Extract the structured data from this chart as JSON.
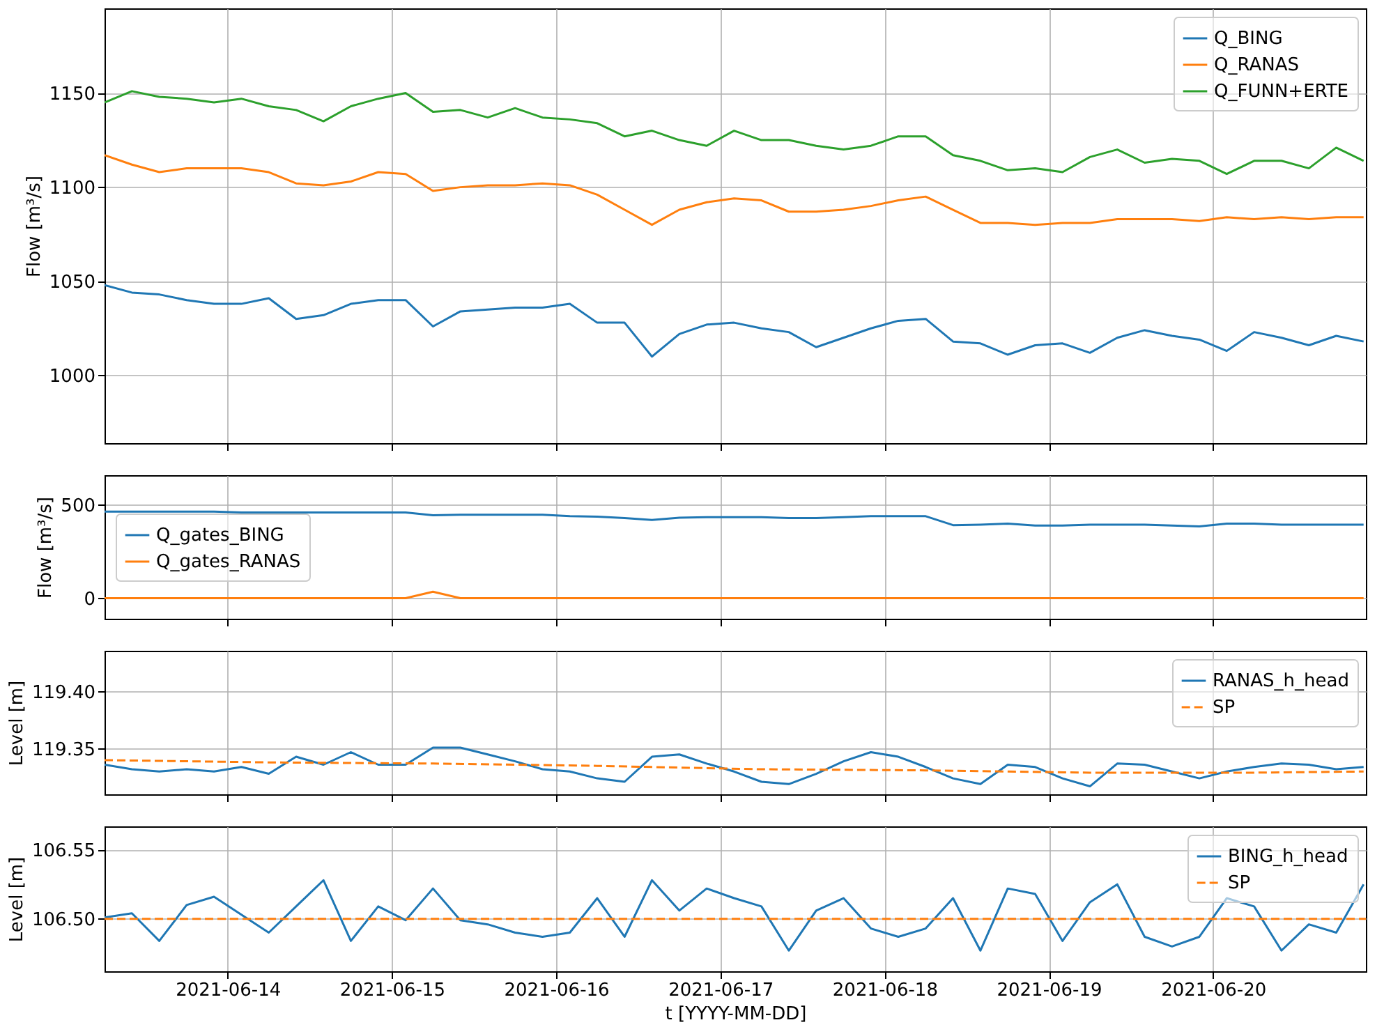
{
  "chart_data": [
    {
      "type": "line",
      "ylabel": "Flow [m³/s]",
      "legend": "top right",
      "grid": true,
      "tick_labels": "y",
      "x": [
        "2021-06-13T06:00",
        "2021-06-13T10:00",
        "2021-06-13T14:00",
        "2021-06-13T18:00",
        "2021-06-13T22:00",
        "2021-06-14T02:00",
        "2021-06-14T06:00",
        "2021-06-14T10:00",
        "2021-06-14T14:00",
        "2021-06-14T18:00",
        "2021-06-14T22:00",
        "2021-06-15T02:00",
        "2021-06-15T06:00",
        "2021-06-15T10:00",
        "2021-06-15T14:00",
        "2021-06-15T18:00",
        "2021-06-15T22:00",
        "2021-06-16T02:00",
        "2021-06-16T06:00",
        "2021-06-16T10:00",
        "2021-06-16T14:00",
        "2021-06-16T18:00",
        "2021-06-16T22:00",
        "2021-06-17T02:00",
        "2021-06-17T06:00",
        "2021-06-17T10:00",
        "2021-06-17T14:00",
        "2021-06-17T18:00",
        "2021-06-17T22:00",
        "2021-06-18T02:00",
        "2021-06-18T06:00",
        "2021-06-18T10:00",
        "2021-06-18T14:00",
        "2021-06-18T18:00",
        "2021-06-18T22:00",
        "2021-06-19T02:00",
        "2021-06-19T06:00",
        "2021-06-19T10:00",
        "2021-06-19T14:00",
        "2021-06-19T18:00",
        "2021-06-19T22:00",
        "2021-06-20T02:00",
        "2021-06-20T06:00",
        "2021-06-20T10:00",
        "2021-06-20T14:00",
        "2021-06-20T18:00",
        "2021-06-20T22:00"
      ],
      "xlim": [
        "2021-06-13T06:00",
        "2021-06-20T22:20"
      ],
      "xticks": [
        "2021-06-14",
        "2021-06-15",
        "2021-06-16",
        "2021-06-17",
        "2021-06-18",
        "2021-06-19",
        "2021-06-20"
      ],
      "ylim": [
        964,
        1195
      ],
      "yticks": [
        1000,
        1050,
        1100,
        1150
      ],
      "series": [
        {
          "name": "Q_BING",
          "color": "#1f77b4",
          "values": [
            1048,
            1044,
            1043,
            1040,
            1038,
            1038,
            1041,
            1030,
            1032,
            1038,
            1040,
            1040,
            1026,
            1034,
            1035,
            1036,
            1036,
            1038,
            1028,
            1028,
            1010,
            1022,
            1027,
            1028,
            1025,
            1023,
            1015,
            1020,
            1025,
            1029,
            1030,
            1018,
            1017,
            1011,
            1016,
            1017,
            1012,
            1020,
            1024,
            1021,
            1019,
            1013,
            1023,
            1020,
            1016,
            1021,
            1018
          ]
        },
        {
          "name": "Q_RANAS",
          "color": "#ff7f0e",
          "values": [
            1117,
            1112,
            1108,
            1110,
            1110,
            1110,
            1108,
            1102,
            1101,
            1103,
            1108,
            1107,
            1098,
            1100,
            1101,
            1101,
            1102,
            1101,
            1096,
            1088,
            1080,
            1088,
            1092,
            1094,
            1093,
            1087,
            1087,
            1088,
            1090,
            1093,
            1095,
            1088,
            1081,
            1081,
            1080,
            1081,
            1081,
            1083,
            1083,
            1083,
            1082,
            1084,
            1083,
            1084,
            1083,
            1084,
            1084
          ]
        },
        {
          "name": "Q_FUNN+ERTE",
          "color": "#2ca02c",
          "values": [
            1145,
            1151,
            1148,
            1147,
            1145,
            1147,
            1143,
            1141,
            1135,
            1143,
            1147,
            1150,
            1140,
            1141,
            1137,
            1142,
            1137,
            1136,
            1134,
            1127,
            1130,
            1125,
            1122,
            1130,
            1125,
            1125,
            1122,
            1120,
            1122,
            1127,
            1127,
            1117,
            1114,
            1109,
            1110,
            1108,
            1116,
            1120,
            1113,
            1115,
            1114,
            1107,
            1114,
            1114,
            1110,
            1121,
            1114
          ]
        }
      ]
    },
    {
      "type": "line",
      "ylabel": "Flow [m³/s]",
      "legend": "left",
      "grid": true,
      "tick_labels": "y",
      "x": [
        "2021-06-13T06:00",
        "2021-06-13T10:00",
        "2021-06-13T14:00",
        "2021-06-13T18:00",
        "2021-06-13T22:00",
        "2021-06-14T02:00",
        "2021-06-14T06:00",
        "2021-06-14T10:00",
        "2021-06-14T14:00",
        "2021-06-14T18:00",
        "2021-06-14T22:00",
        "2021-06-15T02:00",
        "2021-06-15T06:00",
        "2021-06-15T10:00",
        "2021-06-15T14:00",
        "2021-06-15T18:00",
        "2021-06-15T22:00",
        "2021-06-16T02:00",
        "2021-06-16T06:00",
        "2021-06-16T10:00",
        "2021-06-16T14:00",
        "2021-06-16T18:00",
        "2021-06-16T22:00",
        "2021-06-17T02:00",
        "2021-06-17T06:00",
        "2021-06-17T10:00",
        "2021-06-17T14:00",
        "2021-06-17T18:00",
        "2021-06-17T22:00",
        "2021-06-18T02:00",
        "2021-06-18T06:00",
        "2021-06-18T10:00",
        "2021-06-18T14:00",
        "2021-06-18T18:00",
        "2021-06-18T22:00",
        "2021-06-19T02:00",
        "2021-06-19T06:00",
        "2021-06-19T10:00",
        "2021-06-19T14:00",
        "2021-06-19T18:00",
        "2021-06-19T22:00",
        "2021-06-20T02:00",
        "2021-06-20T06:00",
        "2021-06-20T10:00",
        "2021-06-20T14:00",
        "2021-06-20T18:00",
        "2021-06-20T22:00"
      ],
      "xlim": [
        "2021-06-13T06:00",
        "2021-06-20T22:20"
      ],
      "xticks": [
        "2021-06-14",
        "2021-06-15",
        "2021-06-16",
        "2021-06-17",
        "2021-06-18",
        "2021-06-19",
        "2021-06-20"
      ],
      "ylim": [
        -110,
        660
      ],
      "yticks": [
        0,
        500
      ],
      "series": [
        {
          "name": "Q_gates_BING",
          "color": "#1f77b4",
          "values": [
            465,
            465,
            465,
            465,
            465,
            460,
            460,
            460,
            460,
            460,
            460,
            460,
            445,
            448,
            448,
            448,
            448,
            440,
            438,
            430,
            420,
            432,
            435,
            435,
            435,
            430,
            430,
            435,
            440,
            440,
            440,
            392,
            395,
            400,
            390,
            390,
            395,
            395,
            395,
            390,
            385,
            400,
            400,
            395,
            395,
            395,
            395
          ]
        },
        {
          "name": "Q_gates_RANAS",
          "color": "#ff7f0e",
          "values": [
            0,
            0,
            0,
            0,
            0,
            0,
            0,
            0,
            0,
            0,
            0,
            0,
            35,
            0,
            0,
            0,
            0,
            0,
            0,
            0,
            0,
            0,
            0,
            0,
            0,
            0,
            0,
            0,
            0,
            0,
            0,
            0,
            0,
            0,
            0,
            0,
            0,
            0,
            0,
            0,
            0,
            0,
            0,
            0,
            0,
            0,
            0
          ]
        }
      ]
    },
    {
      "type": "line",
      "ylabel": "Level [m]",
      "legend": "top right",
      "grid": true,
      "tick_labels": "y",
      "x": [
        "2021-06-13T06:00",
        "2021-06-13T10:00",
        "2021-06-13T14:00",
        "2021-06-13T18:00",
        "2021-06-13T22:00",
        "2021-06-14T02:00",
        "2021-06-14T06:00",
        "2021-06-14T10:00",
        "2021-06-14T14:00",
        "2021-06-14T18:00",
        "2021-06-14T22:00",
        "2021-06-15T02:00",
        "2021-06-15T06:00",
        "2021-06-15T10:00",
        "2021-06-15T14:00",
        "2021-06-15T18:00",
        "2021-06-15T22:00",
        "2021-06-16T02:00",
        "2021-06-16T06:00",
        "2021-06-16T10:00",
        "2021-06-16T14:00",
        "2021-06-16T18:00",
        "2021-06-16T22:00",
        "2021-06-17T02:00",
        "2021-06-17T06:00",
        "2021-06-17T10:00",
        "2021-06-17T14:00",
        "2021-06-17T18:00",
        "2021-06-17T22:00",
        "2021-06-18T02:00",
        "2021-06-18T06:00",
        "2021-06-18T10:00",
        "2021-06-18T14:00",
        "2021-06-18T18:00",
        "2021-06-18T22:00",
        "2021-06-19T02:00",
        "2021-06-19T06:00",
        "2021-06-19T10:00",
        "2021-06-19T14:00",
        "2021-06-19T18:00",
        "2021-06-19T22:00",
        "2021-06-20T02:00",
        "2021-06-20T06:00",
        "2021-06-20T10:00",
        "2021-06-20T14:00",
        "2021-06-20T18:00",
        "2021-06-20T22:00"
      ],
      "xlim": [
        "2021-06-13T06:00",
        "2021-06-20T22:20"
      ],
      "xticks": [
        "2021-06-14",
        "2021-06-15",
        "2021-06-16",
        "2021-06-17",
        "2021-06-18",
        "2021-06-19",
        "2021-06-20"
      ],
      "ylim": [
        119.31,
        119.436
      ],
      "yticks": [
        {
          "value": 119.35,
          "label": "119.35"
        },
        {
          "value": 119.4,
          "label": "119.40"
        }
      ],
      "series": [
        {
          "name": "RANAS_h_head",
          "color": "#1f77b4",
          "values": [
            119.336,
            119.332,
            119.33,
            119.332,
            119.33,
            119.334,
            119.328,
            119.343,
            119.336,
            119.347,
            119.336,
            119.336,
            119.351,
            119.351,
            119.345,
            119.339,
            119.332,
            119.33,
            119.324,
            119.321,
            119.343,
            119.345,
            119.337,
            119.33,
            119.321,
            119.319,
            119.328,
            119.339,
            119.347,
            119.343,
            119.334,
            119.324,
            119.319,
            119.336,
            119.334,
            119.324,
            119.317,
            119.337,
            119.336,
            119.33,
            119.324,
            119.33,
            119.334,
            119.337,
            119.336,
            119.332,
            119.334
          ]
        },
        {
          "name": "SP",
          "color": "#ff7f0e",
          "line_style": "dashed",
          "x": [
            "2021-06-13T06:00",
            "2021-06-14T06:00",
            "2021-06-15T06:00",
            "2021-06-16T06:00",
            "2021-06-17T06:00",
            "2021-06-18T06:00",
            "2021-06-19T06:00",
            "2021-06-20T06:00",
            "2021-06-20T22:00"
          ],
          "values": [
            119.34,
            119.338,
            119.337,
            119.335,
            119.332,
            119.331,
            119.329,
            119.329,
            119.33
          ]
        }
      ]
    },
    {
      "type": "line",
      "ylabel": "Level [m]",
      "xlabel": "t [YYYY-MM-DD]",
      "legend": "top right",
      "grid": true,
      "x": [
        "2021-06-13T06:00",
        "2021-06-13T10:00",
        "2021-06-13T14:00",
        "2021-06-13T18:00",
        "2021-06-13T22:00",
        "2021-06-14T02:00",
        "2021-06-14T06:00",
        "2021-06-14T10:00",
        "2021-06-14T14:00",
        "2021-06-14T18:00",
        "2021-06-14T22:00",
        "2021-06-15T02:00",
        "2021-06-15T06:00",
        "2021-06-15T10:00",
        "2021-06-15T14:00",
        "2021-06-15T18:00",
        "2021-06-15T22:00",
        "2021-06-16T02:00",
        "2021-06-16T06:00",
        "2021-06-16T10:00",
        "2021-06-16T14:00",
        "2021-06-16T18:00",
        "2021-06-16T22:00",
        "2021-06-17T02:00",
        "2021-06-17T06:00",
        "2021-06-17T10:00",
        "2021-06-17T14:00",
        "2021-06-17T18:00",
        "2021-06-17T22:00",
        "2021-06-18T02:00",
        "2021-06-18T06:00",
        "2021-06-18T10:00",
        "2021-06-18T14:00",
        "2021-06-18T18:00",
        "2021-06-18T22:00",
        "2021-06-19T02:00",
        "2021-06-19T06:00",
        "2021-06-19T10:00",
        "2021-06-19T14:00",
        "2021-06-19T18:00",
        "2021-06-19T22:00",
        "2021-06-20T02:00",
        "2021-06-20T06:00",
        "2021-06-20T10:00",
        "2021-06-20T14:00",
        "2021-06-20T18:00",
        "2021-06-20T22:00"
      ],
      "xlim": [
        "2021-06-13T06:00",
        "2021-06-20T22:20"
      ],
      "xticks": [
        "2021-06-14",
        "2021-06-15",
        "2021-06-16",
        "2021-06-17",
        "2021-06-18",
        "2021-06-19",
        "2021-06-20"
      ],
      "ylim": [
        106.462,
        106.567
      ],
      "yticks": [
        {
          "value": 106.5,
          "label": "106.50"
        },
        {
          "value": 106.55,
          "label": "106.55"
        }
      ],
      "series": [
        {
          "name": "BING_h_head",
          "color": "#1f77b4",
          "values": [
            106.501,
            106.504,
            106.484,
            106.51,
            106.516,
            106.503,
            106.49,
            106.509,
            106.528,
            106.484,
            106.509,
            106.499,
            106.522,
            106.499,
            106.496,
            106.49,
            106.487,
            106.49,
            106.515,
            106.487,
            106.528,
            106.506,
            106.522,
            106.515,
            106.509,
            106.477,
            106.506,
            106.515,
            106.493,
            106.487,
            106.493,
            106.515,
            106.477,
            106.522,
            106.518,
            106.484,
            106.512,
            106.525,
            106.487,
            106.48,
            106.487,
            106.515,
            106.509,
            106.477,
            106.496,
            106.49,
            106.525
          ]
        },
        {
          "name": "SP",
          "color": "#ff7f0e",
          "line_style": "dashed",
          "x": [
            "2021-06-13T06:00",
            "2021-06-20T22:20"
          ],
          "values": [
            106.5,
            106.5
          ]
        }
      ]
    }
  ]
}
